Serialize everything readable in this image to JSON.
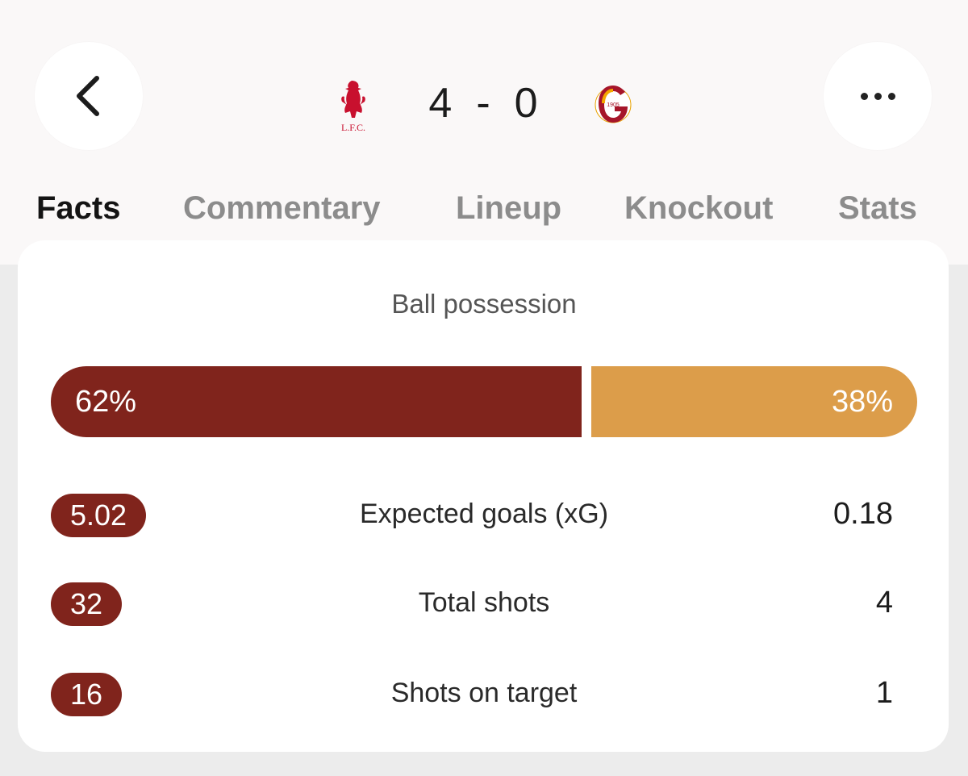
{
  "header": {
    "home_crest_icon": "liverpool-crest-icon",
    "home_crest_text": "L.F.C.",
    "away_crest_icon": "galatasaray-crest-icon",
    "away_crest_text": "1905",
    "score": {
      "home": "4",
      "separator": "-",
      "away": "0"
    }
  },
  "tabs": [
    {
      "label": "Facts",
      "active": true
    },
    {
      "label": "Commentary",
      "active": false
    },
    {
      "label": "Lineup",
      "active": false
    },
    {
      "label": "Knockout",
      "active": false
    },
    {
      "label": "Stats",
      "active": false
    }
  ],
  "stats": {
    "possession_title": "Ball possession",
    "possession": {
      "home_label": "62%",
      "away_label": "38%",
      "home_value": 62,
      "away_value": 38
    },
    "rows": [
      {
        "label": "Expected goals (xG)",
        "home": "5.02",
        "away": "0.18"
      },
      {
        "label": "Total shots",
        "home": "32",
        "away": "4"
      },
      {
        "label": "Shots on target",
        "home": "16",
        "away": "1"
      }
    ]
  },
  "colors": {
    "home": "#80241c",
    "away": "#dc9d4a",
    "tab_active": "#141414",
    "tab_inactive": "#8c8c8c"
  }
}
